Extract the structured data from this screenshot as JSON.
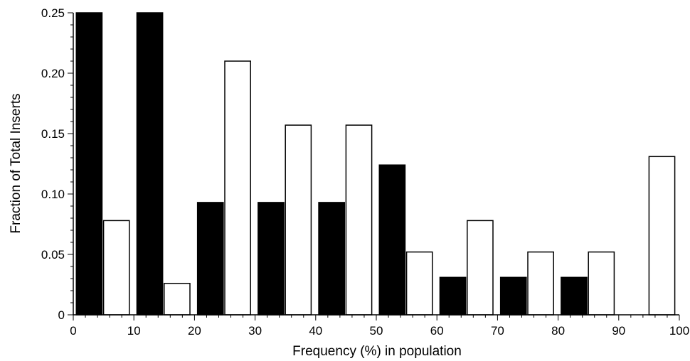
{
  "chart_data": {
    "type": "bar",
    "title": "",
    "xlabel": "Frequency (%) in population",
    "ylabel": "Fraction of Total Inserts",
    "xlim": [
      0,
      100
    ],
    "ylim": [
      0,
      0.25
    ],
    "x_ticks": [
      "0",
      "10",
      "20",
      "30",
      "40",
      "50",
      "60",
      "70",
      "80",
      "90",
      "100"
    ],
    "y_ticks": [
      "0",
      "0.05",
      "0.10",
      "0.15",
      "0.20",
      "0.25"
    ],
    "y_tick_values": [
      0,
      0.05,
      0.1,
      0.15,
      0.2,
      0.25
    ],
    "bin_starts": [
      0,
      10,
      20,
      30,
      40,
      50,
      60,
      70,
      80,
      90
    ],
    "bin_width": 10,
    "grid": false,
    "legend": "none",
    "series": [
      {
        "fill": "#000000",
        "values": [
          0.25,
          0.25,
          0.093,
          0.093,
          0.093,
          0.124,
          0.031,
          0.031,
          0.031,
          0
        ]
      },
      {
        "fill": "#ffffff",
        "values": [
          0.078,
          0.026,
          0.21,
          0.157,
          0.157,
          0.052,
          0.078,
          0.052,
          0.052,
          0.131
        ]
      }
    ]
  }
}
